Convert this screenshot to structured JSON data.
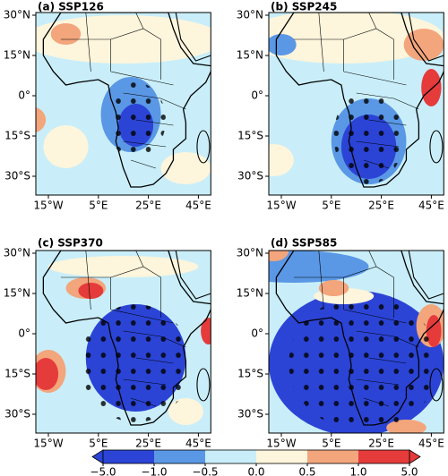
{
  "panels": [
    {
      "title": "(a) SSP126"
    },
    {
      "title": "(b) SSP245"
    },
    {
      "title": "(c) SSP370"
    },
    {
      "title": "(d) SSP585"
    }
  ],
  "lat_labels": [
    "30°N",
    "15°N",
    "0°",
    "15°S",
    "30°S"
  ],
  "lon_labels": [
    "15°W",
    "5°E",
    "25°E",
    "45°E"
  ],
  "colorbar": {
    "ticks": [
      {
        "value": -5,
        "label": "−5.0"
      },
      {
        "value": -1,
        "label": "−1.0"
      },
      {
        "value": -0.5,
        "label": "−0.5"
      },
      {
        "value": 0,
        "label": "0.0"
      },
      {
        "value": 0.5,
        "label": "0.5"
      },
      {
        "value": 1,
        "label": "1.0"
      },
      {
        "value": 5,
        "label": "5.0"
      }
    ],
    "colors": [
      "#2b44d6",
      "#5a98e6",
      "#c9eef9",
      "#fdf5dc",
      "#f3a57c",
      "#e53b3b"
    ]
  }
}
